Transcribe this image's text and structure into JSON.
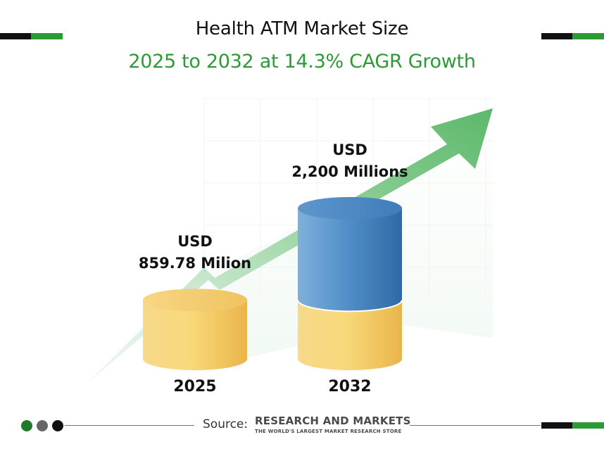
{
  "header": {
    "title": "Health ATM Market Size",
    "subtitle": "2025 to 2032 at 14.3% CAGR Growth"
  },
  "chart_data": {
    "type": "bar",
    "title": "Health ATM Market Size",
    "subtitle": "2025 to 2032 at 14.3% CAGR Growth",
    "categories": [
      "2025",
      "2032"
    ],
    "values": [
      859.78,
      2200
    ],
    "value_labels": [
      {
        "line1": "USD",
        "line2": "859.78 Milion"
      },
      {
        "line1": "USD",
        "line2": "2,200 Millions"
      }
    ],
    "unit": "USD Millions",
    "cagr": "14.3%",
    "grid": false,
    "colors": {
      "base_bar": "#f4c55a",
      "growth_segment": "#4a86c0",
      "trend_arrow": "#5cb86a",
      "subtitle": "#2e9a36"
    }
  },
  "footer": {
    "source_prefix": "Source:",
    "brand": "RESEARCH AND MARKETS",
    "tagline": "THE WORLD'S LARGEST MARKET RESEARCH STORE"
  }
}
